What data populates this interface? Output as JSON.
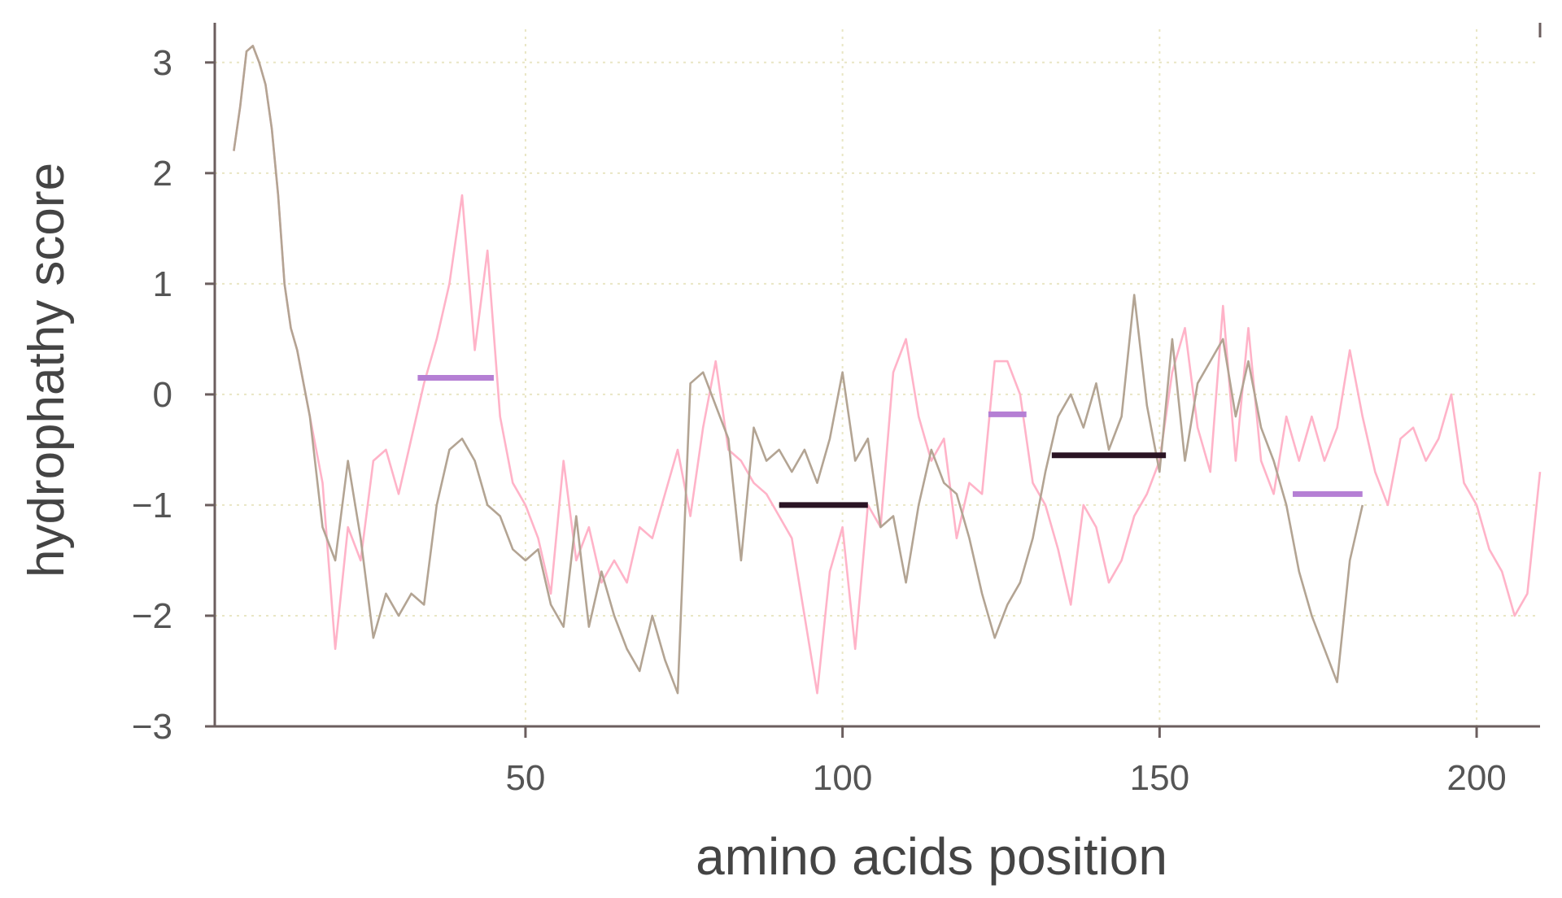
{
  "chart_data": {
    "type": "line",
    "title": "",
    "xlabel": "amino acids position",
    "ylabel": "hydrophathy score",
    "xlim": [
      1,
      210
    ],
    "ylim": [
      -3,
      3.3
    ],
    "xticks": [
      50,
      100,
      150,
      200
    ],
    "yticks": [
      3,
      2,
      1,
      0,
      -1,
      -2,
      -3
    ],
    "ytick_labels": [
      "3",
      "2",
      "1",
      "0",
      "−1",
      "−2",
      "−3"
    ],
    "grid": true,
    "legend": "none",
    "series": [
      {
        "color": "#ffb3c8",
        "x": [
          4,
          5,
          6,
          7,
          8,
          9,
          10,
          11,
          12,
          13,
          14,
          16,
          18,
          20,
          22,
          24,
          26,
          28,
          30,
          32,
          34,
          36,
          38,
          40,
          42,
          44,
          46,
          48,
          50,
          52,
          54,
          56,
          58,
          60,
          62,
          64,
          66,
          68,
          70,
          72,
          74,
          76,
          78,
          80,
          82,
          84,
          86,
          88,
          90,
          92,
          94,
          96,
          98,
          100,
          102,
          104,
          106,
          108,
          110,
          112,
          114,
          116,
          118,
          120,
          122,
          124,
          126,
          128,
          130,
          132,
          134,
          136,
          138,
          140,
          142,
          144,
          146,
          148,
          150,
          152,
          154,
          156,
          158,
          160,
          162,
          164,
          166,
          168,
          170,
          172,
          174,
          176,
          178,
          180,
          182,
          184,
          186,
          188,
          190,
          192,
          194,
          196,
          198,
          200,
          202,
          204,
          206,
          208,
          210
        ],
        "values": [
          2.2,
          2.6,
          3.1,
          3.15,
          3.0,
          2.8,
          2.4,
          1.8,
          1.0,
          0.6,
          0.4,
          -0.2,
          -0.8,
          -2.3,
          -1.2,
          -1.5,
          -0.6,
          -0.5,
          -0.9,
          -0.4,
          0.1,
          0.5,
          1.0,
          1.8,
          0.4,
          1.3,
          -0.2,
          -0.8,
          -1.0,
          -1.3,
          -1.8,
          -0.6,
          -1.5,
          -1.2,
          -1.7,
          -1.5,
          -1.7,
          -1.2,
          -1.3,
          -0.9,
          -0.5,
          -1.1,
          -0.3,
          0.3,
          -0.5,
          -0.6,
          -0.8,
          -0.9,
          -1.1,
          -1.3,
          -2.0,
          -2.7,
          -1.6,
          -1.2,
          -2.3,
          -1.0,
          -1.2,
          0.2,
          0.5,
          -0.2,
          -0.6,
          -0.4,
          -1.3,
          -0.8,
          -0.9,
          0.3,
          0.3,
          0.0,
          -0.8,
          -1.0,
          -1.4,
          -1.9,
          -1.0,
          -1.2,
          -1.7,
          -1.5,
          -1.1,
          -0.9,
          -0.6,
          0.2,
          0.6,
          -0.3,
          -0.7,
          0.8,
          -0.6,
          0.6,
          -0.6,
          -0.9,
          -0.2,
          -0.6,
          -0.2,
          -0.6,
          -0.3,
          0.4,
          -0.2,
          -0.7,
          -1.0,
          -0.4,
          -0.3,
          -0.6,
          -0.4,
          0.0,
          -0.8,
          -1.0,
          -1.4,
          -1.6,
          -2.0,
          -1.8,
          -0.7
        ]
      },
      {
        "color": "#b3a493",
        "x": [
          4,
          5,
          6,
          7,
          8,
          9,
          10,
          11,
          12,
          13,
          14,
          16,
          18,
          20,
          22,
          24,
          26,
          28,
          30,
          32,
          34,
          36,
          38,
          40,
          42,
          44,
          46,
          48,
          50,
          52,
          54,
          56,
          58,
          60,
          62,
          64,
          66,
          68,
          70,
          72,
          74,
          76,
          78,
          80,
          82,
          84,
          86,
          88,
          90,
          92,
          94,
          96,
          98,
          100,
          102,
          104,
          106,
          108,
          110,
          112,
          114,
          116,
          118,
          120,
          122,
          124,
          126,
          128,
          130,
          132,
          134,
          136,
          138,
          140,
          142,
          144,
          146,
          148,
          150,
          152,
          154,
          156,
          158,
          160,
          162,
          164,
          166,
          168,
          170,
          172,
          174,
          176,
          178,
          180,
          182
        ],
        "values": [
          2.2,
          2.6,
          3.1,
          3.15,
          3.0,
          2.8,
          2.4,
          1.8,
          1.0,
          0.6,
          0.4,
          -0.2,
          -1.2,
          -1.5,
          -0.6,
          -1.3,
          -2.2,
          -1.8,
          -2.0,
          -1.8,
          -1.9,
          -1.0,
          -0.5,
          -0.4,
          -0.6,
          -1.0,
          -1.1,
          -1.4,
          -1.5,
          -1.4,
          -1.9,
          -2.1,
          -1.1,
          -2.1,
          -1.6,
          -2.0,
          -2.3,
          -2.5,
          -2.0,
          -2.4,
          -2.7,
          0.1,
          0.2,
          -0.1,
          -0.4,
          -1.5,
          -0.3,
          -0.6,
          -0.5,
          -0.7,
          -0.5,
          -0.8,
          -0.4,
          0.2,
          -0.6,
          -0.4,
          -1.2,
          -1.1,
          -1.7,
          -1.0,
          -0.5,
          -0.8,
          -0.9,
          -1.3,
          -1.8,
          -2.2,
          -1.9,
          -1.7,
          -1.3,
          -0.7,
          -0.2,
          0.0,
          -0.3,
          0.1,
          -0.5,
          -0.2,
          0.9,
          -0.1,
          -0.7,
          0.5,
          -0.6,
          0.1,
          0.3,
          0.5,
          -0.2,
          0.3,
          -0.3,
          -0.6,
          -1.0,
          -1.6,
          -2.0,
          -2.3,
          -2.6,
          -1.5,
          -1.0
        ]
      }
    ],
    "segments": [
      {
        "x": [
          33,
          45
        ],
        "y": 0.15,
        "color": "#b57fd4"
      },
      {
        "x": [
          123,
          129
        ],
        "y": -0.18,
        "color": "#b57fd4"
      },
      {
        "x": [
          171,
          182
        ],
        "y": -0.9,
        "color": "#b57fd4"
      },
      {
        "x": [
          90,
          104
        ],
        "y": -1.0,
        "color": "#2a1424"
      },
      {
        "x": [
          133,
          151
        ],
        "y": -0.55,
        "color": "#2a1424"
      }
    ]
  }
}
